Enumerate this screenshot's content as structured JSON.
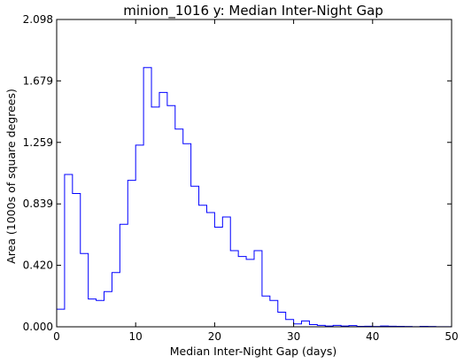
{
  "chart_data": {
    "type": "histogram-step",
    "title": "minion_1016  y: Median Inter-Night Gap",
    "xlabel": "Median Inter-Night Gap (days)",
    "ylabel": "Area (1000s of square degrees)",
    "xlim": [
      0,
      50
    ],
    "ylim": [
      0,
      2.098
    ],
    "xticks": [
      0,
      10,
      20,
      30,
      40,
      50
    ],
    "xtick_labels": [
      "0",
      "10",
      "20",
      "30",
      "40",
      "50"
    ],
    "yticks": [
      0.0,
      0.42,
      0.839,
      1.259,
      1.679,
      2.098
    ],
    "ytick_labels": [
      "0.000",
      "0.420",
      "0.839",
      "1.259",
      "1.679",
      "2.098"
    ],
    "grid": false,
    "line_color": "#0000ff",
    "bin_width": 1,
    "bin_edges_start": 0,
    "values": [
      0.12,
      1.04,
      0.91,
      0.5,
      0.19,
      0.18,
      0.24,
      0.37,
      0.7,
      1.0,
      1.24,
      1.77,
      1.5,
      1.6,
      1.51,
      1.35,
      1.25,
      0.96,
      0.83,
      0.78,
      0.68,
      0.75,
      0.52,
      0.48,
      0.46,
      0.52,
      0.21,
      0.18,
      0.1,
      0.05,
      0.02,
      0.04,
      0.015,
      0.01,
      0.005,
      0.01,
      0.005,
      0.008,
      0.003,
      0.004,
      0.002,
      0.005,
      0.004,
      0.003,
      0.002,
      0.001,
      0.003,
      0.002,
      0.001,
      0.001
    ]
  }
}
